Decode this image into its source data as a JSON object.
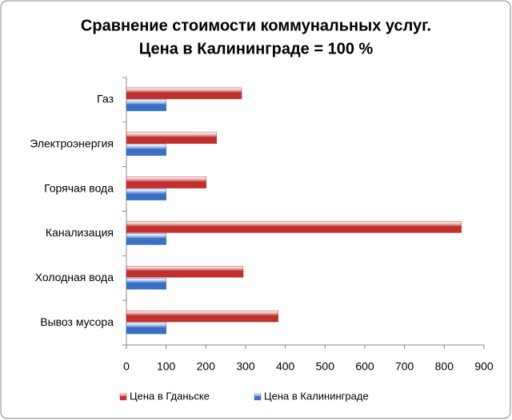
{
  "chart_data": {
    "type": "bar",
    "orientation": "horizontal",
    "title": "Сравнение стоимости коммунальных услуг.",
    "subtitle": "Цена в Калининграде = 100 %",
    "categories": [
      "Газ",
      "Электроэнергия",
      "Горячая вода",
      "Канализация",
      "Холодная вода",
      "Вывоз мусора"
    ],
    "series": [
      {
        "name": "Цена в Гданьске",
        "color": "#c0302c",
        "values": [
          290,
          227,
          201,
          843,
          294,
          382
        ]
      },
      {
        "name": "Цена в Калининграде",
        "color": "#3b6fc4",
        "values": [
          100,
          100,
          100,
          100,
          100,
          100
        ]
      }
    ],
    "xlim": [
      0,
      900
    ],
    "xticks": [
      0,
      100,
      200,
      300,
      400,
      500,
      600,
      700,
      800,
      900
    ],
    "grid": false,
    "legend": "bottom"
  }
}
